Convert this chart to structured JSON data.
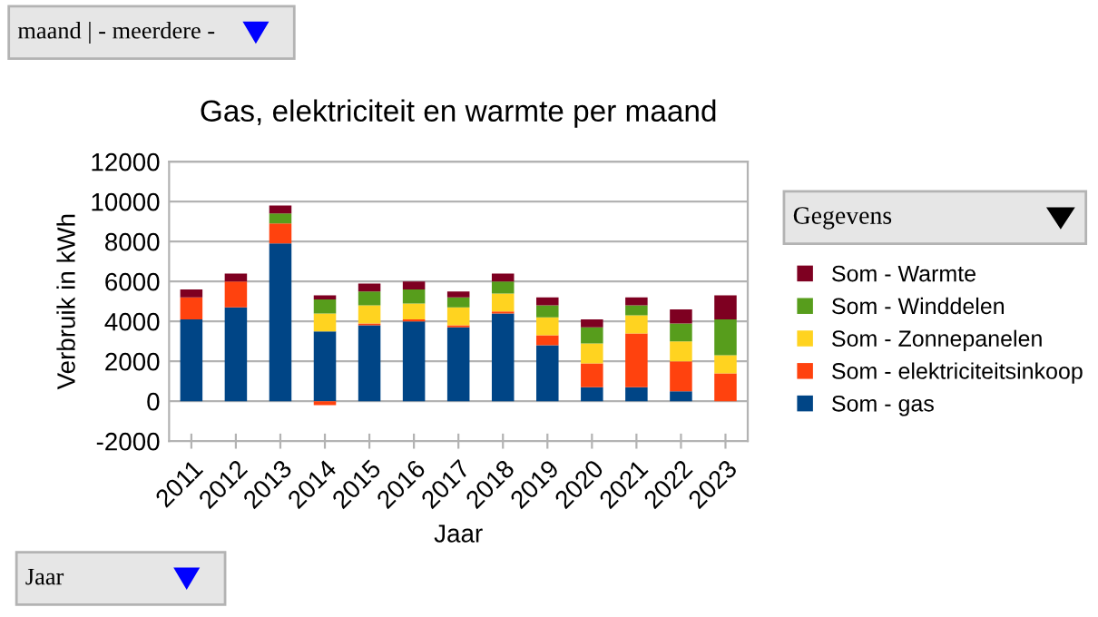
{
  "chart_data": {
    "type": "bar",
    "stacked": true,
    "title": "Gas, elektriciteit en warmte per maand",
    "xlabel": "Jaar",
    "ylabel": "Verbruik in kWh",
    "legend_title": "Gegevens",
    "annotations": [
      "maand | - meerdere -",
      "Jaar"
    ],
    "categories": [
      "2011",
      "2012",
      "2013",
      "2014",
      "2015",
      "2016",
      "2017",
      "2018",
      "2019",
      "2020",
      "2021",
      "2022",
      "2023"
    ],
    "series": [
      {
        "name": "Som - gas",
        "color": "#004586",
        "values": [
          4100,
          4700,
          7900,
          3500,
          3800,
          4000,
          3700,
          4400,
          2800,
          700,
          700,
          500,
          0
        ]
      },
      {
        "name": "Som - elektriciteitsinkoop",
        "color": "#ff420e",
        "values": [
          1100,
          1300,
          1000,
          -200,
          100,
          100,
          100,
          100,
          500,
          1200,
          2700,
          1500,
          1400
        ]
      },
      {
        "name": "Som - Zonnepanelen",
        "color": "#ffd320",
        "values": [
          0,
          0,
          0,
          900,
          900,
          800,
          900,
          900,
          900,
          1000,
          900,
          1000,
          900
        ]
      },
      {
        "name": "Som - Winddelen",
        "color": "#579d1c",
        "values": [
          0,
          0,
          500,
          700,
          700,
          700,
          500,
          600,
          600,
          800,
          500,
          900,
          1800
        ]
      },
      {
        "name": "Som - Warmte",
        "color": "#7e0021",
        "values": [
          400,
          400,
          400,
          200,
          400,
          400,
          300,
          400,
          400,
          400,
          400,
          700,
          1200
        ]
      }
    ],
    "ylim": [
      -2000,
      12000
    ],
    "yticks": [
      -2000,
      0,
      2000,
      4000,
      6000,
      8000,
      10000,
      12000
    ],
    "grid": "y",
    "legend": "right"
  }
}
